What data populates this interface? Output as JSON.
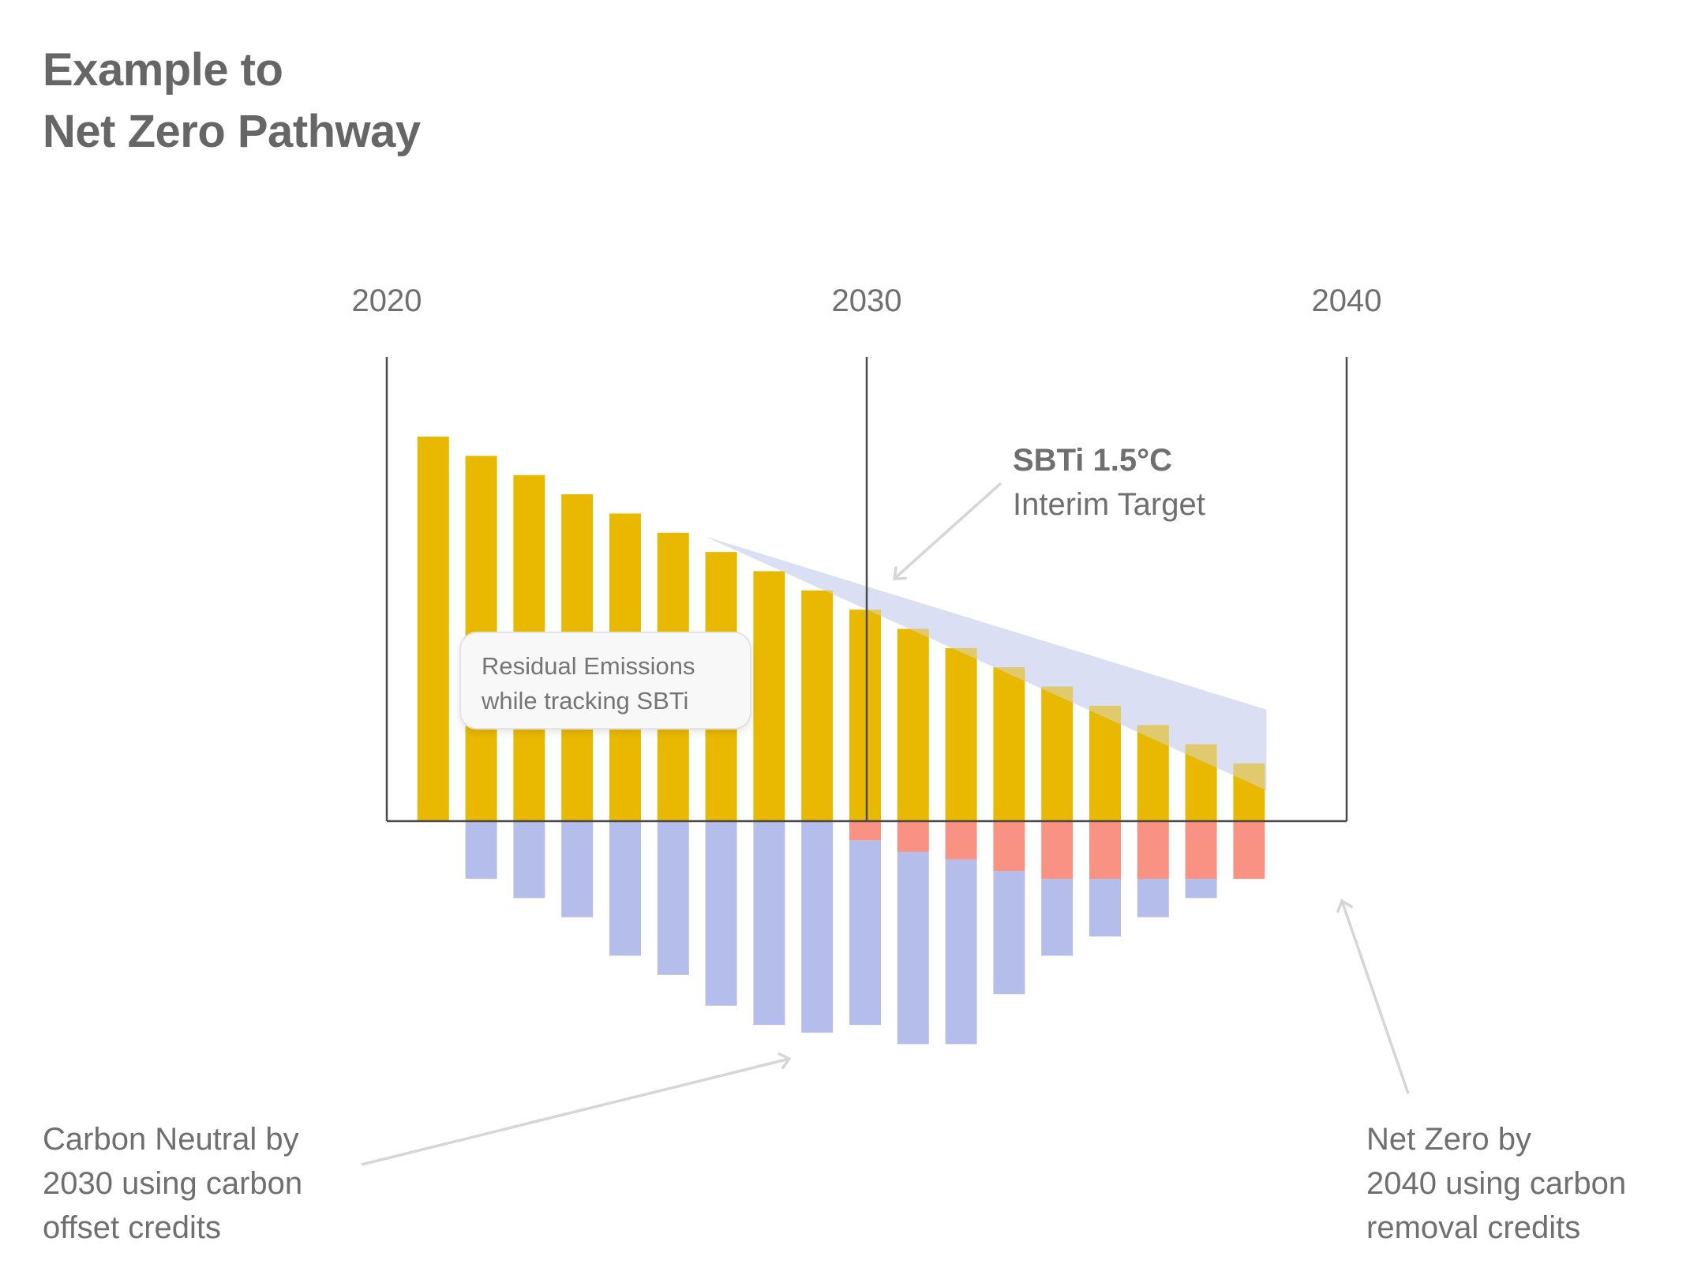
{
  "title": {
    "line1": "Example to",
    "line2": "Net Zero Pathway"
  },
  "chart_data": {
    "type": "bar",
    "x_ticks": [
      "2020",
      "2030",
      "2040"
    ],
    "x_range": [
      2020,
      2040
    ],
    "categories": [
      2021,
      2022,
      2023,
      2024,
      2025,
      2026,
      2027,
      2028,
      2029,
      2030,
      2031,
      2032,
      2033,
      2034,
      2035,
      2036,
      2037,
      2038
    ],
    "series": [
      {
        "name": "Residual emissions",
        "color": "#E8B900",
        "values": [
          100,
          95,
          90,
          85,
          80,
          75,
          70,
          65,
          60,
          55,
          50,
          45,
          40,
          35,
          30,
          25,
          20,
          15
        ]
      },
      {
        "name": "Carbon offset credits",
        "color": "#B5BDEA",
        "values": [
          0,
          -15,
          -20,
          -25,
          -35,
          -40,
          -48,
          -53,
          -55,
          -48,
          -50,
          -48,
          -32,
          -20,
          -15,
          -10,
          -5,
          0
        ]
      },
      {
        "name": "Carbon removal credits",
        "color": "#FA9283",
        "values": [
          0,
          0,
          0,
          0,
          0,
          0,
          0,
          0,
          0,
          -5,
          -8,
          -10,
          -13,
          -15,
          -15,
          -15,
          -15,
          -15
        ]
      }
    ],
    "sbti_band": {
      "name": "SBTi 1.5°C Interim Target",
      "upper": [
        [
          2027,
          74
        ],
        [
          2038,
          29
        ]
      ],
      "lower": [
        [
          2027,
          74
        ],
        [
          2038,
          8
        ]
      ]
    },
    "annotations": [
      "SBTi 1.5°C Interim Target",
      "Residual Emissions while tracking SBTi",
      "Carbon Neutral by 2030 using carbon offset credits",
      "Net Zero by 2040 using carbon removal credits"
    ]
  },
  "sbti": {
    "bold": "SBTi 1.5°C",
    "sub": "Interim Target"
  },
  "callout": {
    "line1": "Residual Emissions",
    "line2": "while tracking SBTi"
  },
  "left_note": {
    "line1": "Carbon Neutral by",
    "line2": "2030 using carbon",
    "line3": "offset credits"
  },
  "right_note": {
    "line1": "Net Zero by",
    "line2": "2040 using carbon",
    "line3": "removal credits"
  },
  "colors": {
    "emissions": "#E8B900",
    "offset": "#B5BDEA",
    "removal": "#FA9283",
    "band": "#DADFF5",
    "axis": "#4a4a4a",
    "text": "#6f6f6f"
  }
}
